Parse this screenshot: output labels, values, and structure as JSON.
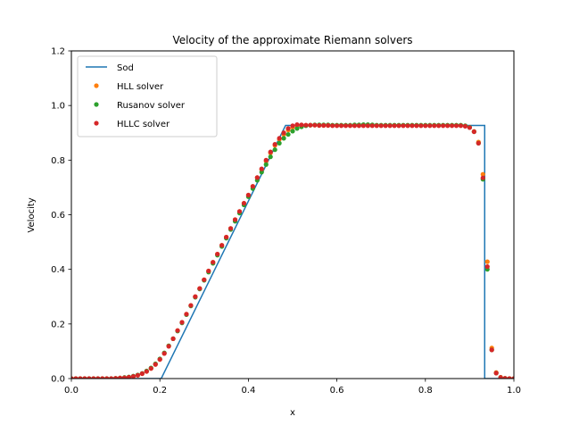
{
  "chart_data": {
    "type": "line",
    "title": "Velocity of the approximate Riemann solvers",
    "xlabel": "x",
    "ylabel": "Velocity",
    "xlim": [
      0,
      1
    ],
    "ylim": [
      0,
      1.2
    ],
    "xticks": [
      "0.0",
      "0.2",
      "0.4",
      "0.6",
      "0.8",
      "1.0"
    ],
    "yticks": [
      "0.0",
      "0.2",
      "0.4",
      "0.6",
      "0.8",
      "1.0",
      "1.2"
    ],
    "legend_position": "top-left",
    "grid": false,
    "series": [
      {
        "name": "Sod",
        "style": "line",
        "color": "#1f77b4",
        "x": [
          0.0,
          0.203,
          0.484,
          0.928,
          0.934,
          0.934,
          1.0
        ],
        "y": [
          0.0,
          0.0,
          0.927,
          0.927,
          0.927,
          0.0,
          0.0
        ]
      },
      {
        "name": "HLL solver",
        "style": "markers",
        "color": "#ff7f0e",
        "x": [
          0.0,
          0.01,
          0.02,
          0.03,
          0.04,
          0.05,
          0.06,
          0.07,
          0.08,
          0.09,
          0.1,
          0.11,
          0.12,
          0.13,
          0.14,
          0.15,
          0.16,
          0.17,
          0.18,
          0.19,
          0.2,
          0.21,
          0.22,
          0.23,
          0.24,
          0.25,
          0.26,
          0.27,
          0.28,
          0.29,
          0.3,
          0.31,
          0.32,
          0.33,
          0.34,
          0.35,
          0.36,
          0.37,
          0.38,
          0.39,
          0.4,
          0.41,
          0.42,
          0.43,
          0.44,
          0.45,
          0.46,
          0.47,
          0.48,
          0.49,
          0.5,
          0.51,
          0.52,
          0.53,
          0.54,
          0.55,
          0.56,
          0.57,
          0.58,
          0.59,
          0.6,
          0.61,
          0.62,
          0.63,
          0.64,
          0.65,
          0.66,
          0.67,
          0.68,
          0.69,
          0.7,
          0.71,
          0.72,
          0.73,
          0.74,
          0.75,
          0.76,
          0.77,
          0.78,
          0.79,
          0.8,
          0.81,
          0.82,
          0.83,
          0.84,
          0.85,
          0.86,
          0.87,
          0.88,
          0.89,
          0.9,
          0.91,
          0.92,
          0.93,
          0.94,
          0.95,
          0.96,
          0.97,
          0.98,
          0.99,
          1.0
        ],
        "y": [
          0.0,
          0.0,
          0.0,
          0.0,
          0.0,
          0.0,
          0.0,
          0.0,
          0.0,
          0.0,
          0.001,
          0.002,
          0.003,
          0.005,
          0.008,
          0.012,
          0.018,
          0.026,
          0.037,
          0.052,
          0.07,
          0.092,
          0.12,
          0.146,
          0.176,
          0.206,
          0.236,
          0.268,
          0.3,
          0.33,
          0.362,
          0.394,
          0.426,
          0.456,
          0.488,
          0.518,
          0.55,
          0.582,
          0.612,
          0.642,
          0.672,
          0.704,
          0.736,
          0.766,
          0.796,
          0.826,
          0.854,
          0.876,
          0.894,
          0.91,
          0.92,
          0.927,
          0.928,
          0.928,
          0.928,
          0.928,
          0.927,
          0.927,
          0.927,
          0.927,
          0.927,
          0.927,
          0.927,
          0.927,
          0.927,
          0.927,
          0.927,
          0.927,
          0.927,
          0.927,
          0.927,
          0.927,
          0.927,
          0.927,
          0.927,
          0.927,
          0.927,
          0.927,
          0.927,
          0.927,
          0.927,
          0.927,
          0.927,
          0.927,
          0.927,
          0.927,
          0.927,
          0.927,
          0.927,
          0.925,
          0.92,
          0.905,
          0.866,
          0.748,
          0.428,
          0.112,
          0.022,
          0.005,
          0.001,
          0.0,
          0.0
        ]
      },
      {
        "name": "Rusanov solver",
        "style": "markers",
        "color": "#2ca02c",
        "x": [
          0.0,
          0.01,
          0.02,
          0.03,
          0.04,
          0.05,
          0.06,
          0.07,
          0.08,
          0.09,
          0.1,
          0.11,
          0.12,
          0.13,
          0.14,
          0.15,
          0.16,
          0.17,
          0.18,
          0.19,
          0.2,
          0.21,
          0.22,
          0.23,
          0.24,
          0.25,
          0.26,
          0.27,
          0.28,
          0.29,
          0.3,
          0.31,
          0.32,
          0.33,
          0.34,
          0.35,
          0.36,
          0.37,
          0.38,
          0.39,
          0.4,
          0.41,
          0.42,
          0.43,
          0.44,
          0.45,
          0.46,
          0.47,
          0.48,
          0.49,
          0.5,
          0.51,
          0.52,
          0.53,
          0.54,
          0.55,
          0.56,
          0.57,
          0.58,
          0.59,
          0.6,
          0.61,
          0.62,
          0.63,
          0.64,
          0.65,
          0.66,
          0.67,
          0.68,
          0.69,
          0.7,
          0.71,
          0.72,
          0.73,
          0.74,
          0.75,
          0.76,
          0.77,
          0.78,
          0.79,
          0.8,
          0.81,
          0.82,
          0.83,
          0.84,
          0.85,
          0.86,
          0.87,
          0.88,
          0.89,
          0.9,
          0.91,
          0.92,
          0.93,
          0.94,
          0.95,
          0.96,
          0.97,
          0.98,
          0.99,
          1.0
        ],
        "y": [
          0.0,
          0.0,
          0.0,
          0.0,
          0.0,
          0.0,
          0.0,
          0.0,
          0.0,
          0.0,
          0.001,
          0.002,
          0.004,
          0.006,
          0.009,
          0.013,
          0.019,
          0.028,
          0.039,
          0.054,
          0.072,
          0.094,
          0.12,
          0.146,
          0.174,
          0.204,
          0.234,
          0.266,
          0.298,
          0.328,
          0.36,
          0.39,
          0.422,
          0.452,
          0.484,
          0.514,
          0.546,
          0.576,
          0.606,
          0.636,
          0.666,
          0.696,
          0.726,
          0.756,
          0.784,
          0.812,
          0.838,
          0.862,
          0.88,
          0.894,
          0.906,
          0.916,
          0.922,
          0.926,
          0.928,
          0.929,
          0.929,
          0.929,
          0.929,
          0.928,
          0.928,
          0.928,
          0.928,
          0.928,
          0.929,
          0.929,
          0.93,
          0.93,
          0.929,
          0.928,
          0.928,
          0.928,
          0.928,
          0.928,
          0.928,
          0.928,
          0.928,
          0.928,
          0.928,
          0.928,
          0.928,
          0.928,
          0.928,
          0.928,
          0.928,
          0.928,
          0.928,
          0.928,
          0.928,
          0.926,
          0.92,
          0.904,
          0.862,
          0.73,
          0.4,
          0.105,
          0.02,
          0.004,
          0.001,
          0.0,
          0.0
        ]
      },
      {
        "name": "HLLC solver",
        "style": "markers",
        "color": "#d62728",
        "x": [
          0.0,
          0.01,
          0.02,
          0.03,
          0.04,
          0.05,
          0.06,
          0.07,
          0.08,
          0.09,
          0.1,
          0.11,
          0.12,
          0.13,
          0.14,
          0.15,
          0.16,
          0.17,
          0.18,
          0.19,
          0.2,
          0.21,
          0.22,
          0.23,
          0.24,
          0.25,
          0.26,
          0.27,
          0.28,
          0.29,
          0.3,
          0.31,
          0.32,
          0.33,
          0.34,
          0.35,
          0.36,
          0.37,
          0.38,
          0.39,
          0.4,
          0.41,
          0.42,
          0.43,
          0.44,
          0.45,
          0.46,
          0.47,
          0.48,
          0.49,
          0.5,
          0.51,
          0.52,
          0.53,
          0.54,
          0.55,
          0.56,
          0.57,
          0.58,
          0.59,
          0.6,
          0.61,
          0.62,
          0.63,
          0.64,
          0.65,
          0.66,
          0.67,
          0.68,
          0.69,
          0.7,
          0.71,
          0.72,
          0.73,
          0.74,
          0.75,
          0.76,
          0.77,
          0.78,
          0.79,
          0.8,
          0.81,
          0.82,
          0.83,
          0.84,
          0.85,
          0.86,
          0.87,
          0.88,
          0.89,
          0.9,
          0.91,
          0.92,
          0.93,
          0.94,
          0.95,
          0.96,
          0.97,
          0.98,
          0.99,
          1.0
        ],
        "y": [
          0.0,
          0.0,
          0.0,
          0.0,
          0.0,
          0.0,
          0.0,
          0.0,
          0.0,
          0.0,
          0.001,
          0.002,
          0.003,
          0.005,
          0.008,
          0.012,
          0.018,
          0.026,
          0.037,
          0.052,
          0.07,
          0.092,
          0.118,
          0.146,
          0.176,
          0.206,
          0.236,
          0.268,
          0.3,
          0.33,
          0.362,
          0.394,
          0.426,
          0.456,
          0.488,
          0.518,
          0.55,
          0.582,
          0.612,
          0.642,
          0.672,
          0.704,
          0.736,
          0.768,
          0.8,
          0.83,
          0.858,
          0.88,
          0.9,
          0.916,
          0.926,
          0.93,
          0.929,
          0.928,
          0.928,
          0.928,
          0.927,
          0.927,
          0.927,
          0.926,
          0.926,
          0.926,
          0.926,
          0.926,
          0.926,
          0.926,
          0.926,
          0.926,
          0.926,
          0.926,
          0.926,
          0.926,
          0.926,
          0.926,
          0.926,
          0.926,
          0.926,
          0.926,
          0.926,
          0.926,
          0.926,
          0.926,
          0.926,
          0.926,
          0.926,
          0.926,
          0.926,
          0.926,
          0.926,
          0.924,
          0.919,
          0.904,
          0.862,
          0.735,
          0.41,
          0.105,
          0.02,
          0.004,
          0.001,
          0.0,
          0.0
        ]
      }
    ]
  }
}
